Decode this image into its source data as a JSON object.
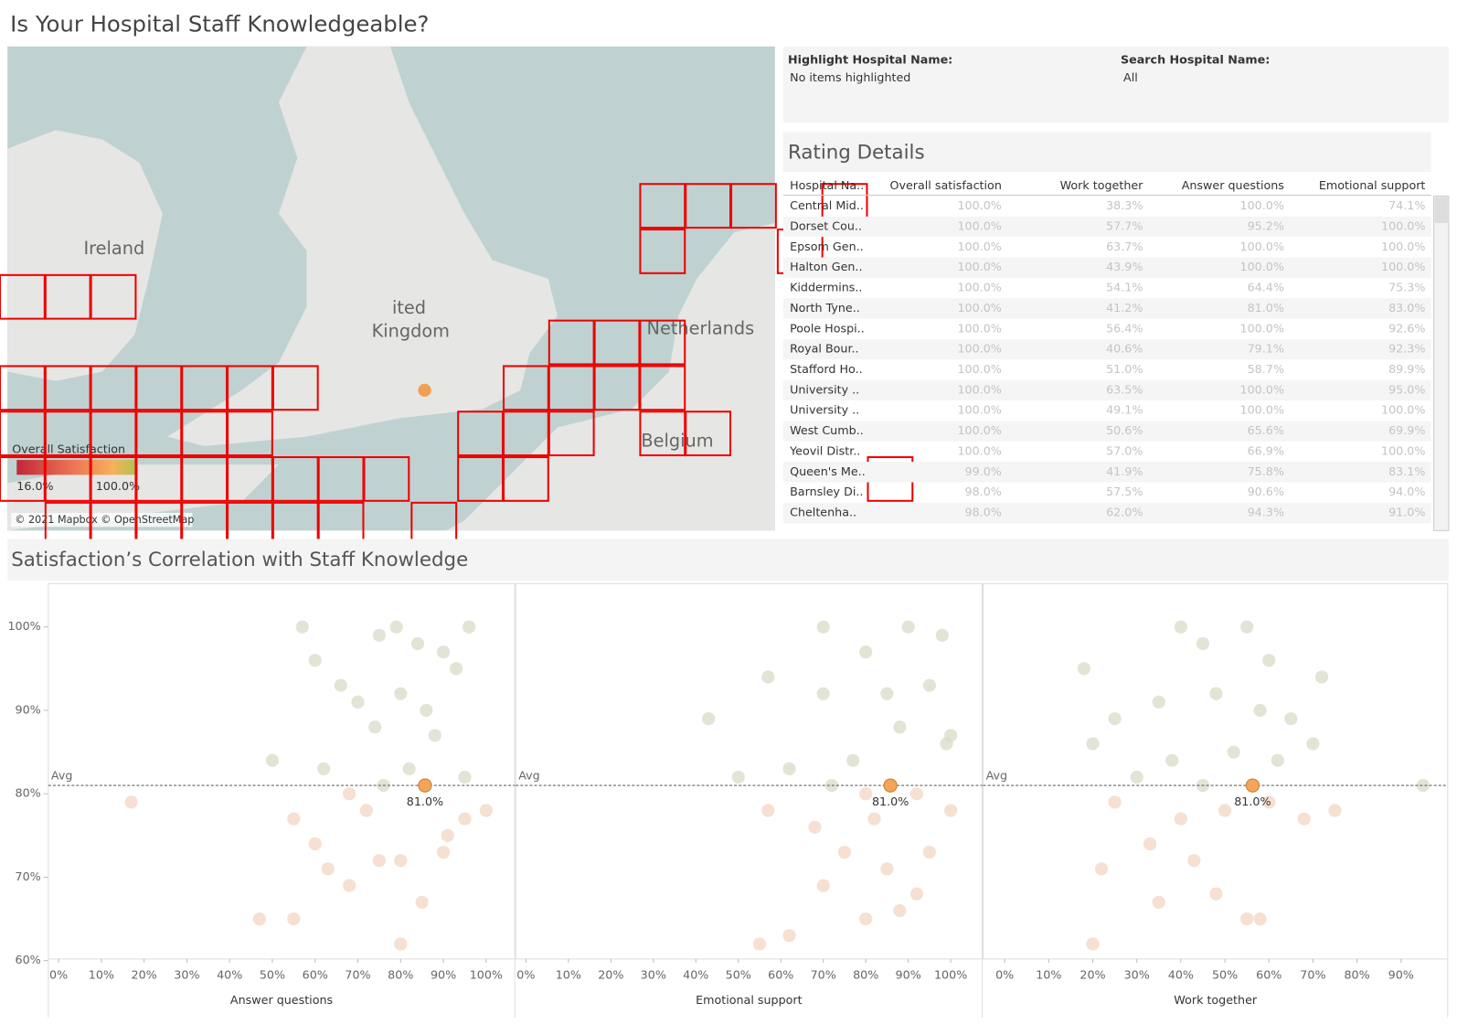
{
  "header": {
    "title": "Is Your Hospital Staff Knowledgeable?"
  },
  "map": {
    "labels": [
      "Ireland",
      "ited",
      "Kingdom",
      "Netherlands",
      "Belgium"
    ],
    "legend": {
      "title": "Overall Satisfaction",
      "min_label": "16.0%",
      "max_label": "100.0%"
    },
    "attribution": "© 2021 Mapbox © OpenStreetMap"
  },
  "filters": [
    {
      "label": "Highlight Hospital Name:",
      "value": "No items highlighted"
    },
    {
      "label": "Search Hospital Name:",
      "value": "All"
    }
  ],
  "table": {
    "title": "Rating Details",
    "columns": [
      "Hospital Na..",
      "Overall satisfaction",
      "Work together",
      "Answer questions",
      "Emotional support"
    ],
    "rows": [
      [
        "Central Mid..",
        "100.0%",
        "38.3%",
        "100.0%",
        "74.1%"
      ],
      [
        "Dorset Cou..",
        "100.0%",
        "57.7%",
        "95.2%",
        "100.0%"
      ],
      [
        "Epsom Gen..",
        "100.0%",
        "63.7%",
        "100.0%",
        "100.0%"
      ],
      [
        "Halton Gen..",
        "100.0%",
        "43.9%",
        "100.0%",
        "100.0%"
      ],
      [
        "Kiddermins..",
        "100.0%",
        "54.1%",
        "64.4%",
        "75.3%"
      ],
      [
        "North Tyne..",
        "100.0%",
        "41.2%",
        "81.0%",
        "83.0%"
      ],
      [
        "Poole Hospi..",
        "100.0%",
        "56.4%",
        "100.0%",
        "92.6%"
      ],
      [
        "Royal Bour..",
        "100.0%",
        "40.6%",
        "79.1%",
        "92.3%"
      ],
      [
        "Stafford Ho..",
        "100.0%",
        "51.0%",
        "58.7%",
        "89.9%"
      ],
      [
        "University ..",
        "100.0%",
        "63.5%",
        "100.0%",
        "95.0%"
      ],
      [
        "University ..",
        "100.0%",
        "49.1%",
        "100.0%",
        "100.0%"
      ],
      [
        "West Cumb..",
        "100.0%",
        "50.6%",
        "65.6%",
        "69.9%"
      ],
      [
        "Yeovil Distr..",
        "100.0%",
        "57.0%",
        "66.9%",
        "100.0%"
      ],
      [
        "Queen's Me..",
        "99.0%",
        "41.9%",
        "75.8%",
        "83.1%"
      ],
      [
        "Barnsley Di..",
        "98.0%",
        "57.5%",
        "90.6%",
        "94.0%"
      ],
      [
        "Cheltenha..",
        "98.0%",
        "62.0%",
        "94.3%",
        "91.0%"
      ]
    ]
  },
  "correlation": {
    "title": "Satisfaction’s Correlation with Staff Knowledge",
    "ylim": [
      60.2,
      105.2
    ],
    "yticks": [
      {
        "value": 60,
        "label": "60%"
      },
      {
        "value": 70,
        "label": "70%"
      },
      {
        "value": 80,
        "label": "80%"
      },
      {
        "value": 90,
        "label": "90%"
      },
      {
        "value": 100,
        "label": "100%"
      }
    ],
    "average": {
      "value": 81.0,
      "label": "Avg"
    },
    "panels": [
      {
        "x_label": "Answer questions",
        "xlim": [
          -2.4,
          106.7
        ],
        "xticks": [
          {
            "value": 0,
            "label": "0%"
          },
          {
            "value": 10,
            "label": "10%"
          },
          {
            "value": 20,
            "label": "20%"
          },
          {
            "value": 30,
            "label": "30%"
          },
          {
            "value": 40,
            "label": "40%"
          },
          {
            "value": 50,
            "label": "50%"
          },
          {
            "value": 60,
            "label": "60%"
          },
          {
            "value": 70,
            "label": "70%"
          },
          {
            "value": 80,
            "label": "80%"
          },
          {
            "value": 90,
            "label": "90%"
          },
          {
            "value": 100,
            "label": "100%"
          }
        ],
        "points": [
          [
            57,
            100
          ],
          [
            60,
            96
          ],
          [
            66,
            93
          ],
          [
            75,
            99
          ],
          [
            79,
            100
          ],
          [
            84,
            98
          ],
          [
            90,
            97
          ],
          [
            96,
            100
          ],
          [
            93,
            95
          ],
          [
            80,
            92
          ],
          [
            86,
            90
          ],
          [
            70,
            91
          ],
          [
            74,
            88
          ],
          [
            88,
            87
          ],
          [
            62,
            83
          ],
          [
            50,
            84
          ],
          [
            68,
            80
          ],
          [
            76,
            81
          ],
          [
            82,
            83
          ],
          [
            95,
            82
          ],
          [
            72,
            78
          ],
          [
            55,
            77
          ],
          [
            60,
            74
          ],
          [
            80,
            72
          ],
          [
            90,
            73
          ],
          [
            68,
            69
          ],
          [
            63,
            71
          ],
          [
            75,
            72
          ],
          [
            85,
            67
          ],
          [
            47,
            65
          ],
          [
            55,
            65
          ],
          [
            80,
            62
          ],
          [
            95,
            77
          ],
          [
            17,
            79
          ],
          [
            91,
            75
          ],
          [
            100,
            78
          ]
        ],
        "highlight": {
          "x": 85.7,
          "y": 81.0,
          "value_label": "81.0%"
        }
      },
      {
        "x_label": "Emotional support",
        "xlim": [
          -2.4,
          107.4
        ],
        "xticks": [
          {
            "value": 0,
            "label": "0%"
          },
          {
            "value": 10,
            "label": "10%"
          },
          {
            "value": 20,
            "label": "20%"
          },
          {
            "value": 30,
            "label": "30%"
          },
          {
            "value": 40,
            "label": "40%"
          },
          {
            "value": 50,
            "label": "50%"
          },
          {
            "value": 60,
            "label": "60%"
          },
          {
            "value": 70,
            "label": "70%"
          },
          {
            "value": 80,
            "label": "80%"
          },
          {
            "value": 90,
            "label": "90%"
          },
          {
            "value": 100,
            "label": "100%"
          }
        ],
        "points": [
          [
            70,
            100
          ],
          [
            80,
            97
          ],
          [
            90,
            100
          ],
          [
            98,
            99
          ],
          [
            57,
            94
          ],
          [
            43,
            89
          ],
          [
            70,
            92
          ],
          [
            85,
            92
          ],
          [
            95,
            93
          ],
          [
            100,
            87
          ],
          [
            88,
            88
          ],
          [
            77,
            84
          ],
          [
            62,
            83
          ],
          [
            50,
            82
          ],
          [
            72,
            81
          ],
          [
            80,
            80
          ],
          [
            92,
            80
          ],
          [
            99,
            86
          ],
          [
            82,
            77
          ],
          [
            68,
            76
          ],
          [
            57,
            78
          ],
          [
            75,
            73
          ],
          [
            85,
            71
          ],
          [
            95,
            73
          ],
          [
            70,
            69
          ],
          [
            88,
            66
          ],
          [
            55,
            62
          ],
          [
            80,
            65
          ],
          [
            62,
            63
          ],
          [
            100,
            78
          ],
          [
            92,
            68
          ]
        ],
        "highlight": {
          "x": 85.8,
          "y": 81.0,
          "value_label": "81.0%"
        }
      },
      {
        "x_label": "Work together",
        "xlim": [
          -4.9,
          100.6
        ],
        "xticks": [
          {
            "value": 0,
            "label": "0%"
          },
          {
            "value": 10,
            "label": "10%"
          },
          {
            "value": 20,
            "label": "20%"
          },
          {
            "value": 30,
            "label": "30%"
          },
          {
            "value": 40,
            "label": "40%"
          },
          {
            "value": 50,
            "label": "50%"
          },
          {
            "value": 60,
            "label": "60%"
          },
          {
            "value": 70,
            "label": "70%"
          },
          {
            "value": 80,
            "label": "80%"
          },
          {
            "value": 90,
            "label": "90%"
          }
        ],
        "points": [
          [
            40,
            100
          ],
          [
            45,
            98
          ],
          [
            55,
            100
          ],
          [
            60,
            96
          ],
          [
            72,
            94
          ],
          [
            18,
            95
          ],
          [
            25,
            89
          ],
          [
            35,
            91
          ],
          [
            48,
            92
          ],
          [
            58,
            90
          ],
          [
            65,
            89
          ],
          [
            20,
            86
          ],
          [
            38,
            84
          ],
          [
            52,
            85
          ],
          [
            62,
            84
          ],
          [
            70,
            86
          ],
          [
            30,
            82
          ],
          [
            45,
            81
          ],
          [
            25,
            79
          ],
          [
            40,
            77
          ],
          [
            50,
            78
          ],
          [
            60,
            79
          ],
          [
            33,
            74
          ],
          [
            43,
            72
          ],
          [
            22,
            71
          ],
          [
            35,
            67
          ],
          [
            48,
            68
          ],
          [
            55,
            65
          ],
          [
            20,
            62
          ],
          [
            95,
            81
          ],
          [
            75,
            78
          ],
          [
            58,
            65
          ],
          [
            68,
            77
          ]
        ],
        "highlight": {
          "x": 56.3,
          "y": 81.0,
          "value_label": "81.0%"
        }
      }
    ]
  }
}
